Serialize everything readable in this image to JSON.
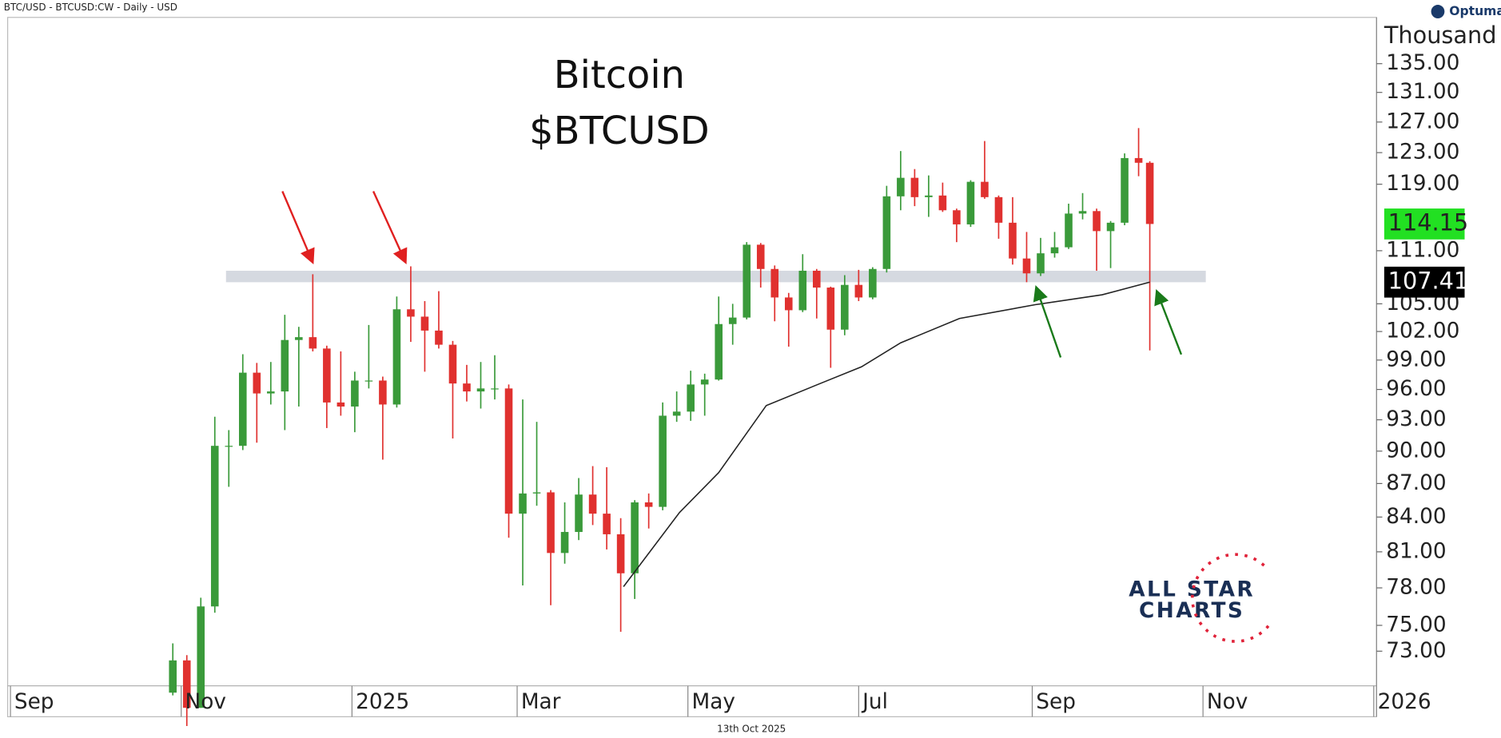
{
  "chart_data": {
    "type": "candlestick",
    "header": "BTC/USD - BTCUSD:CW - Daily - USD",
    "brand": "Optuma",
    "title": "Bitcoin",
    "subtitle": "$BTCUSD",
    "y_unit": "Thousand",
    "footer": "13th Oct 2025",
    "logo": [
      "ALL STAR",
      "CHARTS"
    ],
    "up_color": "#3a9a3a",
    "down_color": "#e0312f",
    "last_color": "#22e022",
    "x": [
      "2024-10-29",
      "2024-11-03",
      "2024-11-08",
      "2024-11-13",
      "2024-11-18",
      "2024-11-23",
      "2024-11-28",
      "2024-12-03",
      "2024-12-08",
      "2024-12-13",
      "2024-12-18",
      "2024-12-23",
      "2024-12-28",
      "2025-01-02",
      "2025-01-07",
      "2025-01-12",
      "2025-01-17",
      "2025-01-22",
      "2025-01-27",
      "2025-02-01",
      "2025-02-06",
      "2025-02-11",
      "2025-02-16",
      "2025-02-21",
      "2025-02-26",
      "2025-03-03",
      "2025-03-08",
      "2025-03-13",
      "2025-03-18",
      "2025-03-23",
      "2025-03-28",
      "2025-04-02",
      "2025-04-07",
      "2025-04-12",
      "2025-04-17",
      "2025-04-22",
      "2025-04-27",
      "2025-05-02",
      "2025-05-07",
      "2025-05-12",
      "2025-05-17",
      "2025-05-22",
      "2025-05-27",
      "2025-06-01",
      "2025-06-06",
      "2025-06-11",
      "2025-06-16",
      "2025-06-21",
      "2025-06-26",
      "2025-07-01",
      "2025-07-06",
      "2025-07-11",
      "2025-07-16",
      "2025-07-21",
      "2025-07-26",
      "2025-07-31",
      "2025-08-05",
      "2025-08-10",
      "2025-08-15",
      "2025-08-20",
      "2025-08-25",
      "2025-08-30",
      "2025-09-04",
      "2025-09-09",
      "2025-09-14",
      "2025-09-19",
      "2025-09-24",
      "2025-09-29",
      "2025-10-04",
      "2025-10-09",
      "2025-10-13"
    ],
    "open": [
      69.9,
      72.3,
      68.8,
      76.5,
      90.5,
      90.5,
      97.7,
      95.6,
      95.8,
      101.1,
      101.4,
      100.2,
      94.7,
      94.3,
      96.9,
      96.9,
      94.5,
      104.4,
      103.6,
      102.1,
      100.6,
      96.6,
      95.8,
      96.1,
      96.1,
      84.3,
      86.1,
      86.2,
      80.9,
      82.7,
      86.0,
      84.3,
      82.5,
      79.2,
      85.3,
      84.9,
      93.4,
      93.8,
      96.5,
      97.0,
      102.8,
      103.5,
      111.7,
      108.9,
      105.7,
      104.3,
      108.7,
      106.8,
      102.2,
      107.1,
      105.7,
      108.9,
      117.5,
      119.8,
      117.4,
      117.6,
      115.8,
      114.1,
      119.3,
      117.4,
      114.3,
      110.1,
      108.4,
      110.7,
      111.4,
      115.4,
      115.7,
      113.3,
      114.3,
      122.3,
      121.7
    ],
    "high": [
      73.6,
      72.7,
      77.2,
      93.3,
      92.0,
      99.6,
      98.7,
      98.8,
      103.8,
      102.5,
      108.3,
      100.5,
      99.9,
      97.8,
      102.7,
      97.3,
      105.8,
      109.2,
      105.3,
      106.4,
      101.0,
      98.5,
      98.8,
      99.5,
      96.5,
      95.0,
      92.8,
      86.4,
      85.3,
      87.5,
      88.6,
      88.5,
      83.9,
      85.5,
      86.1,
      94.7,
      95.8,
      97.9,
      97.6,
      105.8,
      105.0,
      112.0,
      111.9,
      109.3,
      106.2,
      110.6,
      108.9,
      106.9,
      108.2,
      108.8,
      109.1,
      118.8,
      123.2,
      120.9,
      120.1,
      119.2,
      116.0,
      119.5,
      124.5,
      117.6,
      117.4,
      113.2,
      112.5,
      113.2,
      116.6,
      117.9,
      116.0,
      114.5,
      122.9,
      126.2,
      121.9
    ],
    "low": [
      69.7,
      67.5,
      68.8,
      76.0,
      86.7,
      90.1,
      90.8,
      94.5,
      92.0,
      94.3,
      99.9,
      92.2,
      93.4,
      91.8,
      96.1,
      89.2,
      94.2,
      100.9,
      97.8,
      100.2,
      91.2,
      94.8,
      94.1,
      95.0,
      82.2,
      78.2,
      85.0,
      76.6,
      80.0,
      82.0,
      83.3,
      81.2,
      74.5,
      77.1,
      83.0,
      84.6,
      92.8,
      92.9,
      93.4,
      96.9,
      100.6,
      103.3,
      106.8,
      103.1,
      100.4,
      104.1,
      103.4,
      98.2,
      101.6,
      105.3,
      105.5,
      108.5,
      115.8,
      116.3,
      115.0,
      115.6,
      112.0,
      113.8,
      117.2,
      112.4,
      109.4,
      107.4,
      108.1,
      110.2,
      111.2,
      114.7,
      108.7,
      109.0,
      114.0,
      120.0,
      100.0
    ],
    "close": [
      72.3,
      68.8,
      76.5,
      90.5,
      90.5,
      97.7,
      95.6,
      95.8,
      101.1,
      101.4,
      100.2,
      94.7,
      94.3,
      96.9,
      96.9,
      94.5,
      104.4,
      103.6,
      102.1,
      100.6,
      96.6,
      95.8,
      96.1,
      96.1,
      84.3,
      86.1,
      86.2,
      80.9,
      82.7,
      86.0,
      84.3,
      82.5,
      79.2,
      85.3,
      84.9,
      93.4,
      93.8,
      96.5,
      97.0,
      102.8,
      103.5,
      111.7,
      108.9,
      105.7,
      104.3,
      108.7,
      106.8,
      102.2,
      107.1,
      105.7,
      108.9,
      117.5,
      119.8,
      117.4,
      117.6,
      115.8,
      114.1,
      119.3,
      117.4,
      114.3,
      110.1,
      108.4,
      110.7,
      111.4,
      115.4,
      115.7,
      113.3,
      114.3,
      122.3,
      121.7,
      114.15
    ],
    "moving_average": {
      "color": "#222222",
      "x": [
        "2025-04-08",
        "2025-04-28",
        "2025-05-12",
        "2025-05-29",
        "2025-06-19",
        "2025-07-02",
        "2025-07-16",
        "2025-08-06",
        "2025-09-02",
        "2025-09-26",
        "2025-10-13"
      ],
      "values": [
        78.1,
        84.4,
        88.0,
        94.4,
        96.8,
        98.3,
        100.8,
        103.4,
        104.9,
        106.0,
        107.41
      ]
    },
    "band": {
      "x": [
        "2024-11-17",
        "2025-11-02"
      ],
      "range": [
        107.4,
        108.7
      ],
      "color": "#d5d9e0"
    },
    "log_scale": true,
    "ylim": [
      70.4,
      144.3
    ],
    "yticks": [
      {
        "value": 73,
        "label": "73.00"
      },
      {
        "value": 75,
        "label": "75.00"
      },
      {
        "value": 78,
        "label": "78.00"
      },
      {
        "value": 81,
        "label": "81.00"
      },
      {
        "value": 84,
        "label": "84.00"
      },
      {
        "value": 87,
        "label": "87.00"
      },
      {
        "value": 90,
        "label": "90.00"
      },
      {
        "value": 93,
        "label": "93.00"
      },
      {
        "value": 96,
        "label": "96.00"
      },
      {
        "value": 99,
        "label": "99.00"
      },
      {
        "value": 102,
        "label": "102.00"
      },
      {
        "value": 105,
        "label": "105.00"
      },
      {
        "value": 111,
        "label": "111.00"
      },
      {
        "value": 119,
        "label": "119.00"
      },
      {
        "value": 123,
        "label": "123.00"
      },
      {
        "value": 127,
        "label": "127.00"
      },
      {
        "value": 131,
        "label": "131.00"
      },
      {
        "value": 135,
        "label": "135.00"
      }
    ],
    "xlim": [
      "2024-08-31",
      "2026-01-02"
    ],
    "xticks": [
      {
        "value": "2024-09-01",
        "label": "Sep"
      },
      {
        "value": "2024-11-01",
        "label": "Nov"
      },
      {
        "value": "2025-01-01",
        "label": "2025"
      },
      {
        "value": "2025-03-01",
        "label": "Mar"
      },
      {
        "value": "2025-05-01",
        "label": "May"
      },
      {
        "value": "2025-07-01",
        "label": "Jul"
      },
      {
        "value": "2025-09-01",
        "label": "Sep"
      },
      {
        "value": "2025-11-01",
        "label": "Nov"
      },
      {
        "value": "2026-01-01",
        "label": "2026"
      }
    ]
  }
}
